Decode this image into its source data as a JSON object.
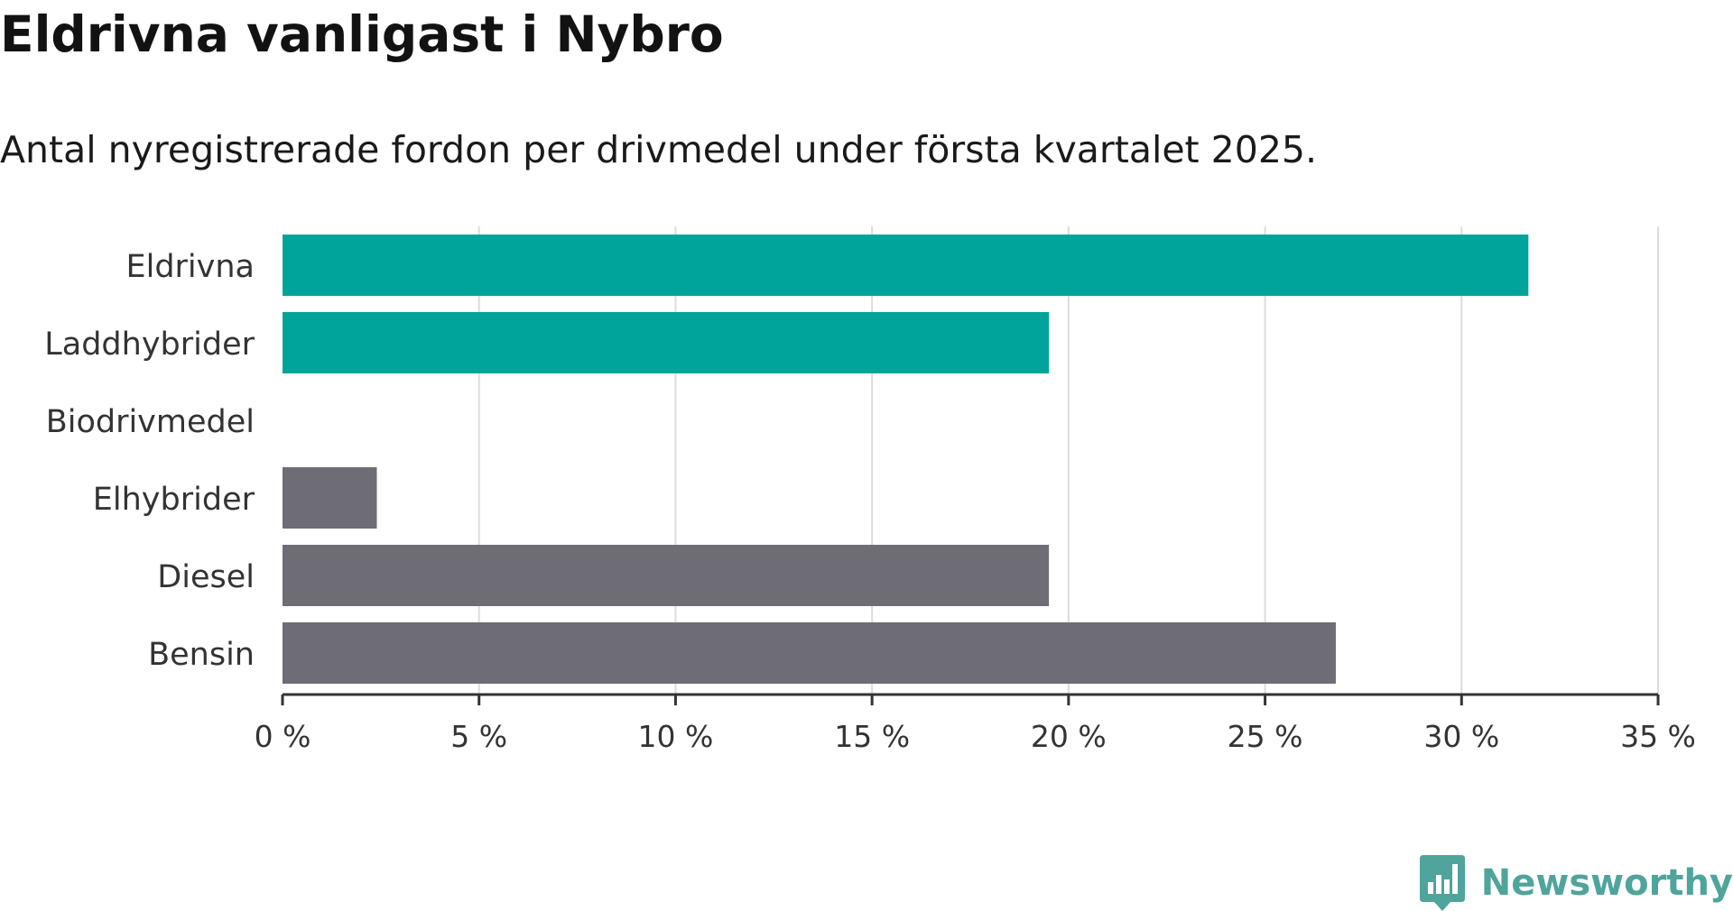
{
  "header": {
    "title": "Eldrivna vanligast i Nybro",
    "subtitle": "Antal nyregistrerade fordon per drivmedel under första kvartalet 2025."
  },
  "brand": {
    "name": "Newsworthy",
    "icon": "newsworthy-logo-icon",
    "color": "#4fa49c"
  },
  "chart_data": {
    "type": "bar",
    "orientation": "horizontal",
    "categories": [
      "Eldrivna",
      "Laddhybrider",
      "Biodrivmedel",
      "Elhybrider",
      "Diesel",
      "Bensin"
    ],
    "values": [
      31.7,
      19.5,
      0,
      2.4,
      19.5,
      26.8
    ],
    "bar_colors": [
      "#00a49a",
      "#00a49a",
      "#00a49a",
      "#6e6d75",
      "#6e6d75",
      "#6e6d75"
    ],
    "xlim": [
      0,
      35
    ],
    "xticks": [
      0,
      5,
      10,
      15,
      20,
      25,
      30,
      35
    ],
    "xtick_labels": [
      "0 %",
      "5 %",
      "10 %",
      "15 %",
      "20 %",
      "25 %",
      "30 %",
      "35 %"
    ],
    "grid": "vertical",
    "title": "Eldrivna vanligast i Nybro",
    "xlabel": "",
    "ylabel": ""
  }
}
